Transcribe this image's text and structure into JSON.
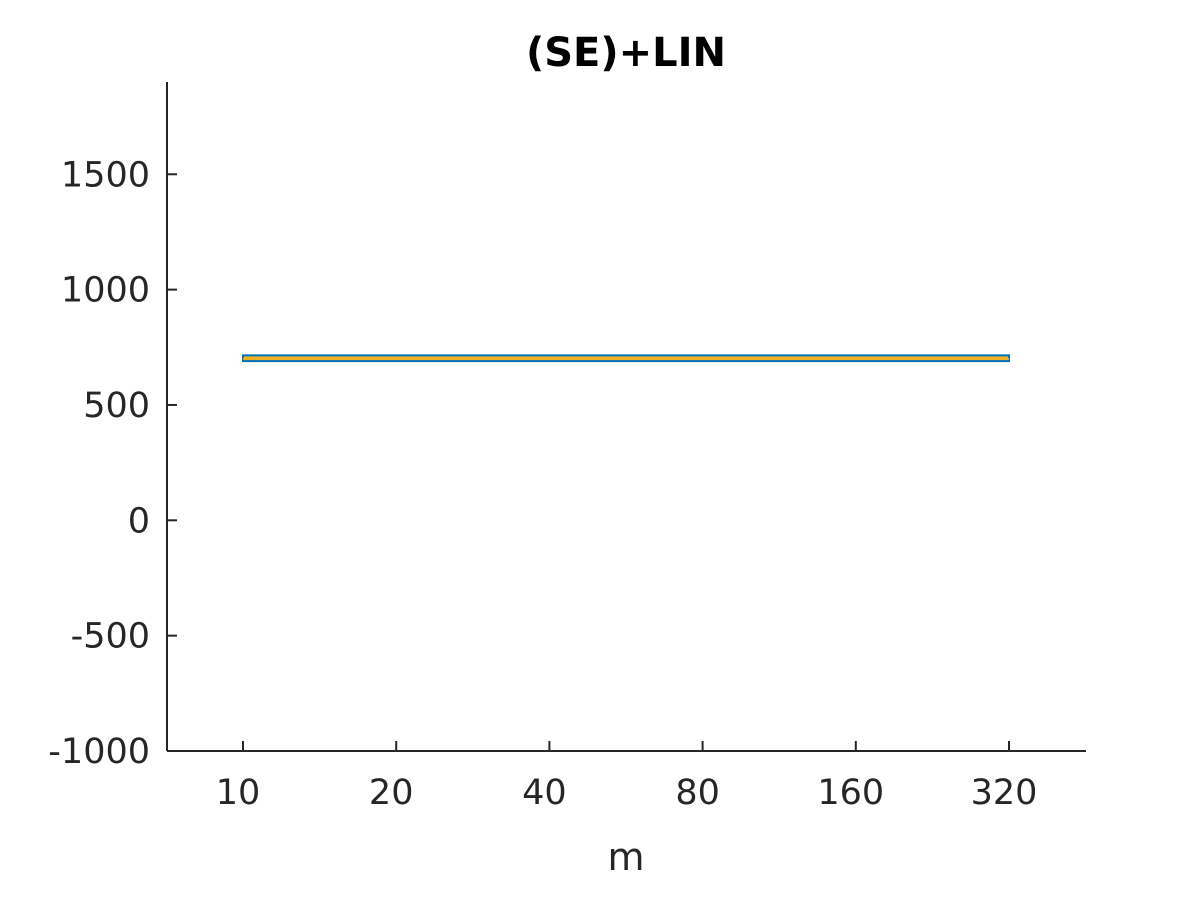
{
  "chart_data": {
    "type": "line",
    "title": "(SE)+LIN",
    "xlabel": "m",
    "ylabel": "",
    "x_scale": "log2",
    "x": [
      10,
      20,
      40,
      80,
      160,
      320
    ],
    "xticks": [
      "10",
      "20",
      "40",
      "80",
      "160",
      "320"
    ],
    "xlim": [
      7,
      450
    ],
    "ylim": [
      -1000,
      1900
    ],
    "yticks": [
      -1000,
      -500,
      0,
      500,
      1000,
      1500
    ],
    "grid": false,
    "legend": "none",
    "series": [
      {
        "values": [
          700,
          700,
          700,
          700,
          700,
          700
        ],
        "band_lower": [
          690,
          690,
          690,
          690,
          690,
          690
        ],
        "band_upper": [
          715,
          715,
          715,
          715,
          715,
          715
        ],
        "band_color": "#EDB120",
        "line_color": "#0072BD"
      }
    ],
    "axis_color": "#262626"
  }
}
